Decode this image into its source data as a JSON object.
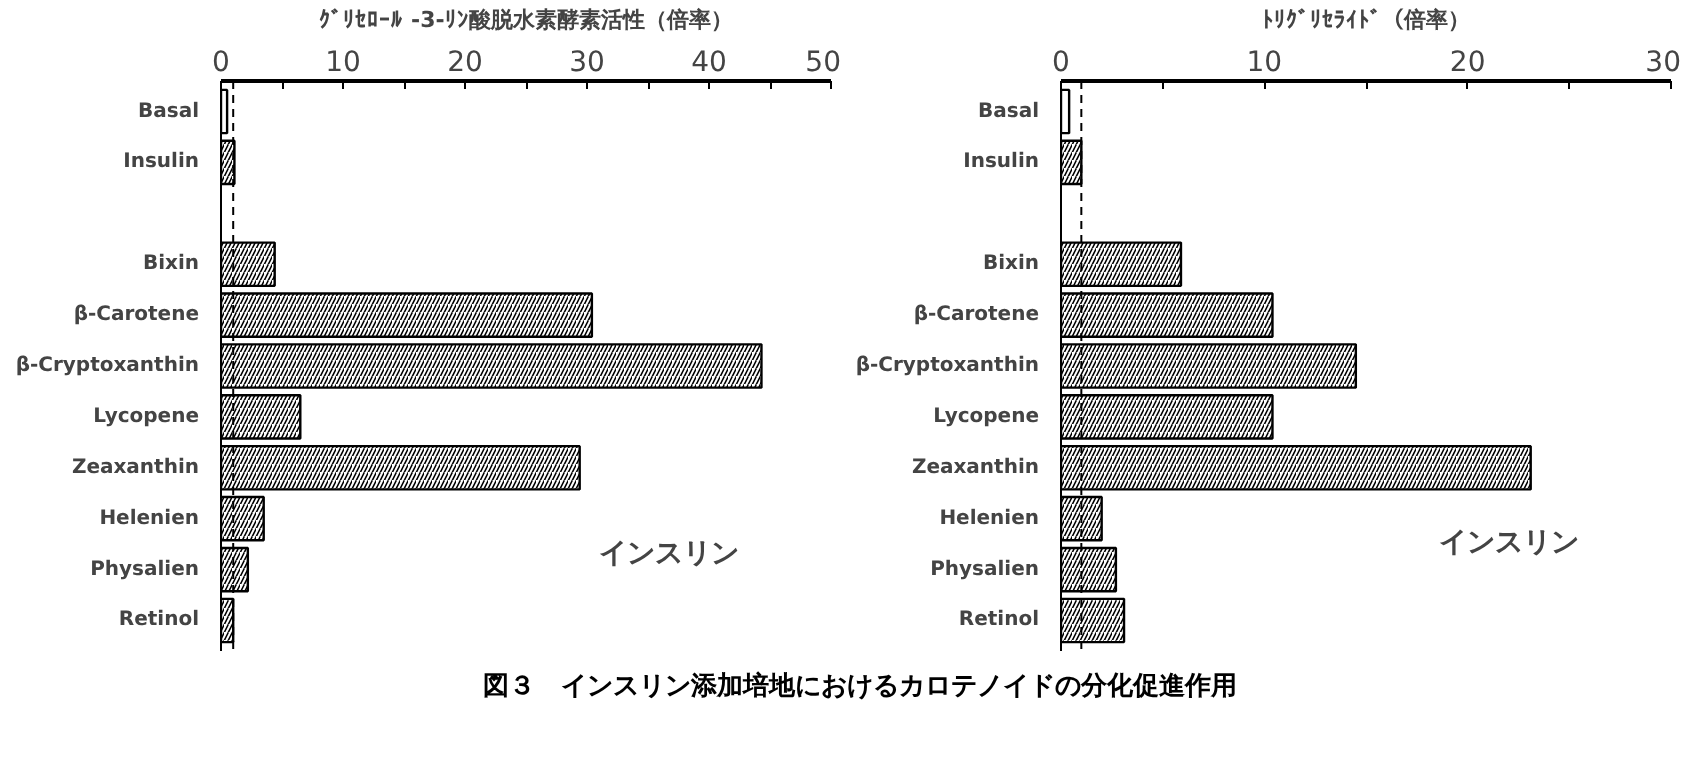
{
  "chart_data": [
    {
      "type": "bar",
      "orientation": "horizontal",
      "xlabel": "ｸﾞﾘｾﾛｰﾙ -3-ﾘﾝ酸脱水素酵素活性（倍率）",
      "categories": [
        "Basal",
        "Insulin",
        null,
        "Bixin",
        "β-Carotene",
        "β-Cryptoxanthin",
        "Lycopene",
        "Zeaxanthin",
        "Helenien",
        "Physalien",
        "Retinol"
      ],
      "values": [
        0.5,
        1.1,
        null,
        4.4,
        30.4,
        44.3,
        6.5,
        29.4,
        3.5,
        2.2,
        1.0
      ],
      "colors": [
        "#ffffff",
        "#000000",
        "#000000",
        "#000000",
        "#000000",
        "#000000",
        "#000000",
        "#000000",
        "#000000",
        "#000000",
        "#000000"
      ],
      "xlim": [
        0,
        50
      ],
      "xticks": [
        0,
        {
          "value": 5,
          "label": null
        },
        10,
        {
          "value": 15,
          "label": null
        },
        20,
        {
          "value": 25,
          "label": null
        },
        30,
        {
          "value": 35,
          "label": null
        },
        40,
        {
          "value": 45,
          "label": null
        },
        50
      ],
      "ref_lines": [
        {
          "axis": "x",
          "value": 1,
          "line_style": "dashed"
        }
      ],
      "annotations": [
        "インスリン",
        "図３　インスリン添加培地におけるカロテノイドの分化促進作用"
      ],
      "grid": false
    },
    {
      "type": "bar",
      "orientation": "horizontal",
      "xlabel": "ﾄﾘｸﾞﾘｾﾗｲﾄﾞ（倍率）",
      "categories": [
        "Basal",
        "Insulin",
        null,
        "Bixin",
        "β-Carotene",
        "β-Cryptoxanthin",
        "Lycopene",
        "Zeaxanthin",
        "Helenien",
        "Physalien",
        "Retinol"
      ],
      "values": [
        0.4,
        1.0,
        null,
        5.9,
        10.4,
        14.5,
        10.4,
        23.1,
        2.0,
        2.7,
        3.1
      ],
      "colors": [
        "#ffffff",
        "#000000",
        "#000000",
        "#000000",
        "#000000",
        "#000000",
        "#000000",
        "#000000",
        "#000000",
        "#000000",
        "#000000"
      ],
      "xlim": [
        0,
        30
      ],
      "xticks": [
        0,
        {
          "value": 5,
          "label": null
        },
        10,
        {
          "value": 15,
          "label": null
        },
        20,
        {
          "value": 25,
          "label": null
        },
        30
      ],
      "ref_lines": [
        {
          "axis": "x",
          "value": 1,
          "line_style": "dashed"
        }
      ],
      "annotations": [
        "インスリン"
      ],
      "grid": false
    }
  ]
}
